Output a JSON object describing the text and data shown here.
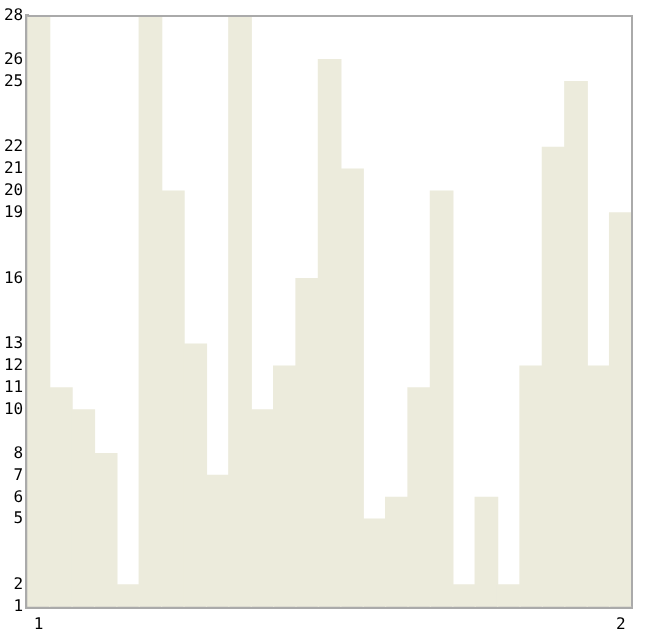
{
  "chart_data": {
    "type": "bar",
    "categories": [
      "1",
      null,
      null,
      null,
      null,
      null,
      null,
      null,
      null,
      null,
      null,
      null,
      null,
      null,
      null,
      null,
      null,
      null,
      null,
      null,
      null,
      null,
      null,
      null,
      null,
      null,
      "2"
    ],
    "values": [
      28,
      11,
      10,
      8,
      2,
      28,
      20,
      13,
      7,
      28,
      10,
      12,
      16,
      26,
      21,
      5,
      6,
      11,
      20,
      2,
      6,
      2,
      12,
      22,
      25,
      12,
      19
    ],
    "color": "#ecebdc",
    "ylim": [
      1,
      28
    ],
    "yticks": [
      1,
      2,
      5,
      6,
      7,
      8,
      10,
      11,
      12,
      13,
      16,
      19,
      20,
      21,
      22,
      25,
      26,
      28
    ],
    "grid": false,
    "legend": false
  }
}
